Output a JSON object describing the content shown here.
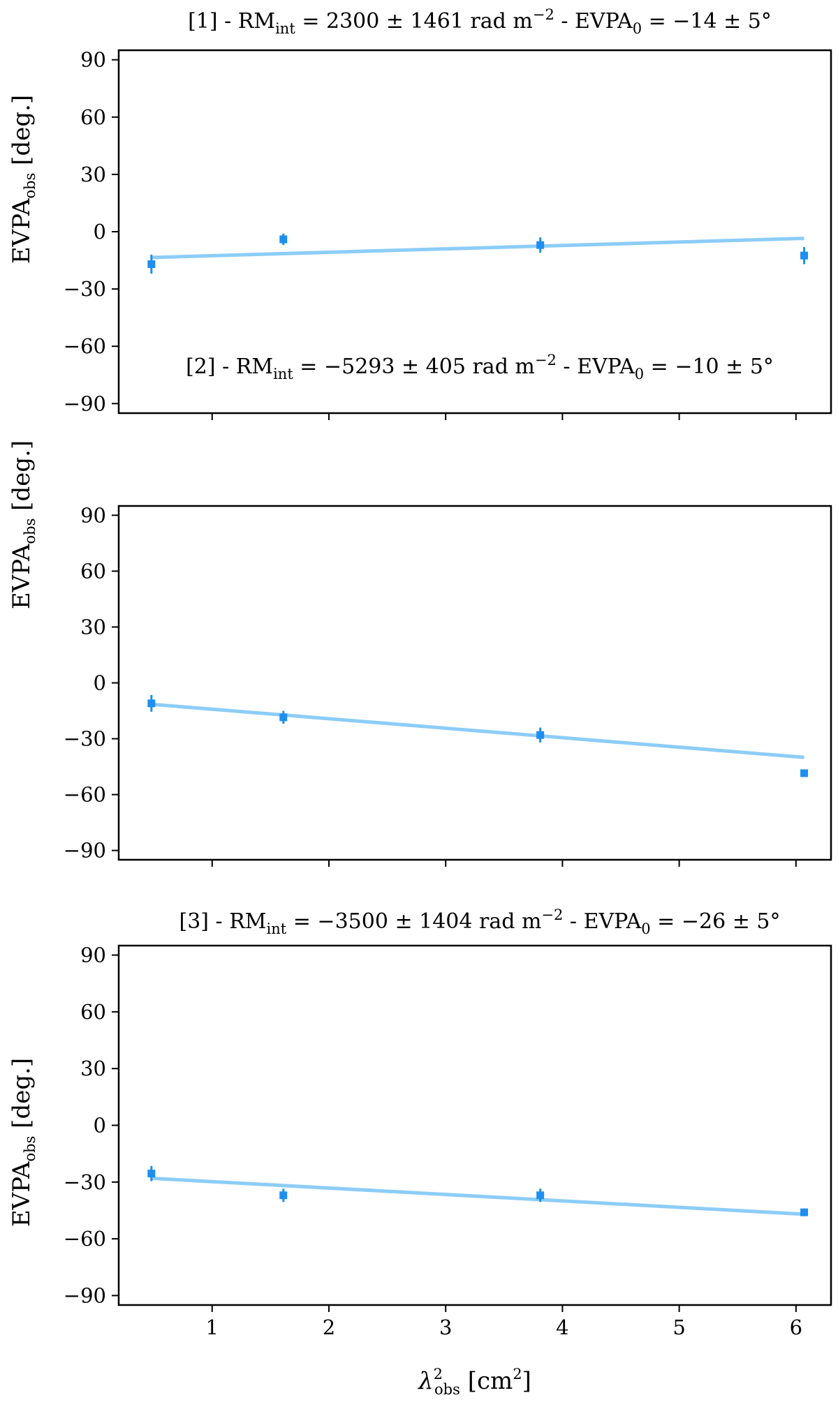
{
  "colors": {
    "fit_line": "#8ccdf7",
    "points": "#1e8ff0",
    "axes": "#000000"
  },
  "shared_xlabel": {
    "base": "λ",
    "sup": "2",
    "sub": "obs",
    "rest": " [cm",
    "rest_sup": "2",
    "close": "]"
  },
  "chart_data": [
    {
      "type": "scatter",
      "title_parts": {
        "prefix": "[1] - RM",
        "rm_sub": "int",
        "rm_val": " = 2300 ± 1461 rad m",
        "rm_unit_sup": "−2",
        "mid": " - EVPA",
        "evpa_sub": "0",
        "evpa_val": " = −14 ± 5°"
      },
      "ylabel": {
        "base": "EVPA",
        "sub": "obs",
        "rest": " [deg.]"
      },
      "xlim": [
        0.2,
        6.3
      ],
      "ylim": [
        -95,
        95
      ],
      "yticks": [
        90,
        60,
        30,
        0,
        -30,
        -60,
        -90
      ],
      "ytick_labels": [
        "90",
        "60",
        "30",
        "0",
        "−30",
        "−60",
        "−90"
      ],
      "xticks": [
        1,
        2,
        3,
        4,
        5,
        6
      ],
      "x": [
        0.48,
        1.61,
        3.81,
        6.07
      ],
      "y": [
        -17,
        -4,
        -7,
        -12.5
      ],
      "yerr": [
        5,
        3,
        4,
        4.5
      ],
      "fit": {
        "x": [
          0.48,
          6.07
        ],
        "y": [
          -13.5,
          -3.5
        ]
      },
      "show_xtick_labels": false
    },
    {
      "type": "scatter",
      "title_parts": {
        "prefix": "[2] - RM",
        "rm_sub": "int",
        "rm_val": " = −5293 ± 405 rad m",
        "rm_unit_sup": "−2",
        "mid": " - EVPA",
        "evpa_sub": "0",
        "evpa_val": " = −10 ± 5°"
      },
      "ylabel": {
        "base": "EVPA",
        "sub": "obs",
        "rest": " [deg.]"
      },
      "xlim": [
        0.2,
        6.3
      ],
      "ylim": [
        -95,
        95
      ],
      "yticks": [
        90,
        60,
        30,
        0,
        -30,
        -60,
        -90
      ],
      "ytick_labels": [
        "90",
        "60",
        "30",
        "0",
        "−30",
        "−60",
        "−90"
      ],
      "xticks": [
        1,
        2,
        3,
        4,
        5,
        6
      ],
      "x": [
        0.48,
        1.61,
        3.81,
        6.07
      ],
      "y": [
        -11,
        -18.5,
        -28,
        -48.5
      ],
      "yerr": [
        4.5,
        3.5,
        4,
        2
      ],
      "fit": {
        "x": [
          0.48,
          6.07
        ],
        "y": [
          -11.5,
          -40
        ]
      },
      "show_xtick_labels": false
    },
    {
      "type": "scatter",
      "title_parts": {
        "prefix": "[3] - RM",
        "rm_sub": "int",
        "rm_val": " = −3500 ± 1404 rad m",
        "rm_unit_sup": "−2",
        "mid": " - EVPA",
        "evpa_sub": "0",
        "evpa_val": " = −26 ± 5°"
      },
      "ylabel": {
        "base": "EVPA",
        "sub": "obs",
        "rest": " [deg.]"
      },
      "xlim": [
        0.2,
        6.3
      ],
      "ylim": [
        -95,
        95
      ],
      "yticks": [
        90,
        60,
        30,
        0,
        -30,
        -60,
        -90
      ],
      "ytick_labels": [
        "90",
        "60",
        "30",
        "0",
        "−30",
        "−60",
        "−90"
      ],
      "xticks": [
        1,
        2,
        3,
        4,
        5,
        6
      ],
      "xtick_labels": [
        "1",
        "2",
        "3",
        "4",
        "5",
        "6"
      ],
      "x": [
        0.48,
        1.61,
        3.81,
        6.07
      ],
      "y": [
        -25.5,
        -37,
        -37,
        -46
      ],
      "yerr": [
        4,
        3.5,
        3.5,
        2
      ],
      "fit": {
        "x": [
          0.48,
          6.07
        ],
        "y": [
          -28,
          -47
        ]
      },
      "show_xtick_labels": true
    }
  ]
}
